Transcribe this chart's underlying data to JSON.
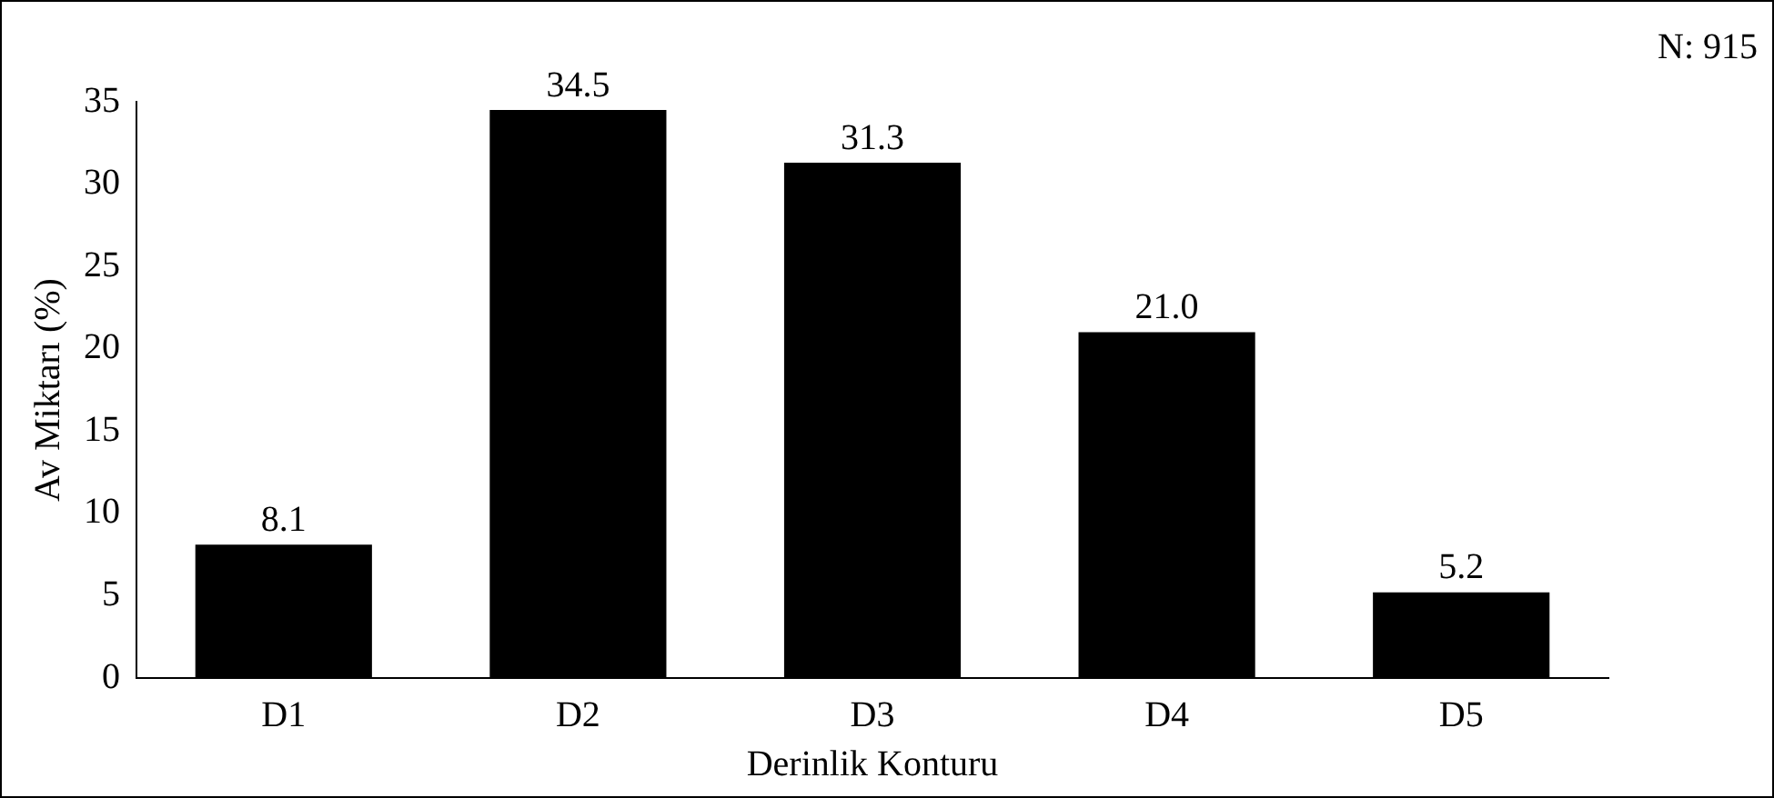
{
  "chart_data": {
    "type": "bar",
    "xlabel": "Derinlik Konturu",
    "ylabel": "Av Miktarı (%)",
    "categories": [
      "D1",
      "D2",
      "D3",
      "D4",
      "D5"
    ],
    "values": [
      8.1,
      34.5,
      31.3,
      21.0,
      5.2
    ],
    "value_labels": [
      "8.1",
      "34.5",
      "31.3",
      "21.0",
      "5.2"
    ],
    "color": "#000000",
    "ylim": [
      0,
      35
    ],
    "yticks": [
      0,
      5,
      10,
      15,
      20,
      25,
      30,
      35
    ],
    "grid": false,
    "legend": false,
    "annotations": [
      "N: 915"
    ]
  }
}
